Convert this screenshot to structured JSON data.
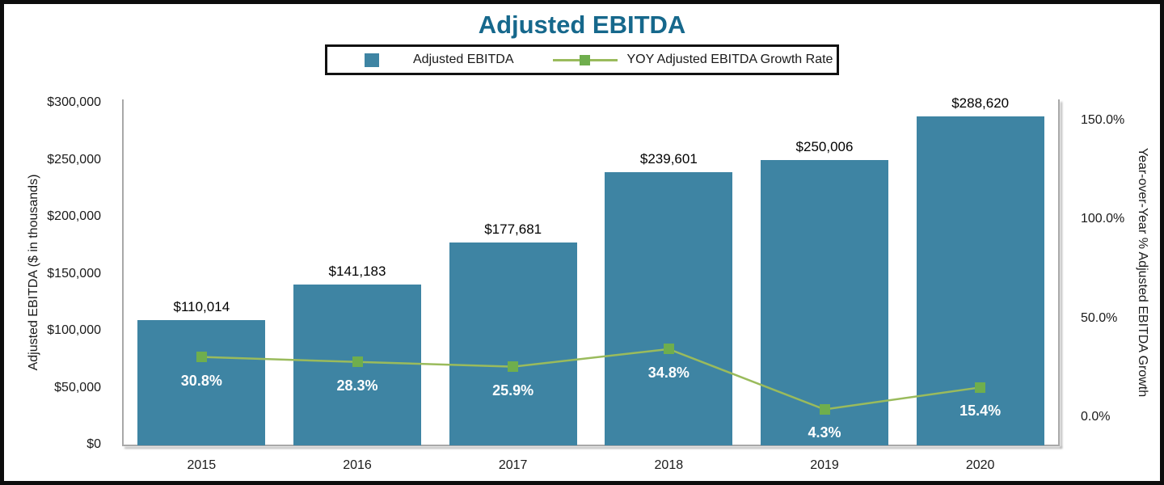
{
  "title": "Adjusted EBITDA",
  "legend": {
    "bar_label": "Adjusted EBITDA",
    "line_label": "YOY Adjusted EBITDA Growth Rate"
  },
  "colors": {
    "bar": "#3E84A3",
    "line": "#9ABB5C",
    "marker": "#6FAE4D",
    "title": "#16688C",
    "axis_line": "#A8A8A8",
    "value_label": "#000000",
    "growth_label": "#FFFFFF"
  },
  "chart_data": {
    "type": "bar",
    "subtype": "combo-bar-line",
    "title": "Adjusted EBITDA",
    "categories": [
      "2015",
      "2016",
      "2017",
      "2018",
      "2019",
      "2020"
    ],
    "series": [
      {
        "name": "Adjusted EBITDA",
        "type": "bar",
        "axis": "left",
        "values": [
          110014,
          141183,
          177681,
          239601,
          250006,
          288620
        ],
        "labels": [
          "$110,014",
          "$141,183",
          "$177,681",
          "$239,601",
          "$250,006",
          "$288,620"
        ]
      },
      {
        "name": "YOY Adjusted EBITDA Growth Rate",
        "type": "line",
        "axis": "right",
        "values": [
          30.8,
          28.3,
          25.9,
          34.8,
          4.3,
          15.4
        ],
        "labels": [
          "30.8%",
          "28.3%",
          "25.9%",
          "34.8%",
          "4.3%",
          "15.4%"
        ]
      }
    ],
    "left_axis": {
      "title": "Adjusted EBITDA ($ in thousands)",
      "max": 300000,
      "ticks": [
        {
          "label": "$0",
          "value": 0
        },
        {
          "label": "$50,000",
          "value": 50000
        },
        {
          "label": "$100,000",
          "value": 100000
        },
        {
          "label": "$150,000",
          "value": 150000
        },
        {
          "label": "$200,000",
          "value": 200000
        },
        {
          "label": "$250,000",
          "value": 250000
        },
        {
          "label": "$300,000",
          "value": 300000
        }
      ]
    },
    "right_axis": {
      "title": "Year-over-Year % Adjusted EBITDA Growth",
      "max": 150,
      "ticks": [
        {
          "label": "0.0%",
          "value": 0
        },
        {
          "label": "50.0%",
          "value": 50
        },
        {
          "label": "100.0%",
          "value": 100
        },
        {
          "label": "150.0%",
          "value": 150
        }
      ]
    },
    "grid": false,
    "legend_position": "top-center"
  }
}
